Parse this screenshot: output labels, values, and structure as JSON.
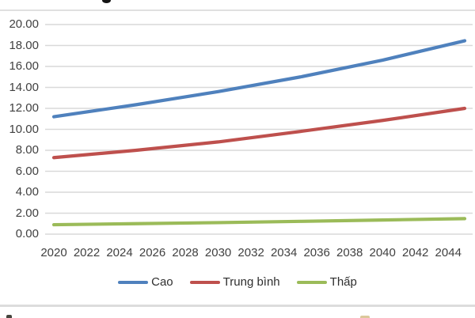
{
  "page": {
    "background": "#ffffff",
    "divider_color": "#dcdcdc"
  },
  "chart_data": {
    "type": "line",
    "title": "",
    "xlabel": "",
    "ylabel": "",
    "x_range": [
      2020,
      2045
    ],
    "y_range": [
      0,
      20
    ],
    "x_ticks": [
      "2020",
      "2022",
      "2024",
      "2026",
      "2028",
      "2030",
      "2032",
      "2034",
      "2036",
      "2038",
      "2040",
      "2042",
      "2044"
    ],
    "y_ticks": [
      "20.00",
      "18.00",
      "16.00",
      "14.00",
      "12.00",
      "10.00",
      "8.00",
      "6.00",
      "4.00",
      "2.00",
      "0.00"
    ],
    "grid": true,
    "grid_color": "#D9D9D9",
    "tick_label_color": "#404040",
    "legend_position": "bottom",
    "series": [
      {
        "name": "Cao",
        "color": "#4F81BD",
        "points": [
          [
            2020,
            11.2
          ],
          [
            2025,
            12.35
          ],
          [
            2030,
            13.6
          ],
          [
            2035,
            15.0
          ],
          [
            2040,
            16.6
          ],
          [
            2045,
            18.45
          ]
        ]
      },
      {
        "name": "Trung bình",
        "color": "#BE504D",
        "points": [
          [
            2020,
            7.3
          ],
          [
            2025,
            8.0
          ],
          [
            2030,
            8.8
          ],
          [
            2035,
            9.8
          ],
          [
            2040,
            10.85
          ],
          [
            2045,
            12.0
          ]
        ]
      },
      {
        "name": "Thấp",
        "color": "#9BBB59",
        "points": [
          [
            2020,
            0.9
          ],
          [
            2025,
            1.0
          ],
          [
            2030,
            1.1
          ],
          [
            2035,
            1.22
          ],
          [
            2040,
            1.35
          ],
          [
            2045,
            1.48
          ]
        ]
      }
    ]
  }
}
